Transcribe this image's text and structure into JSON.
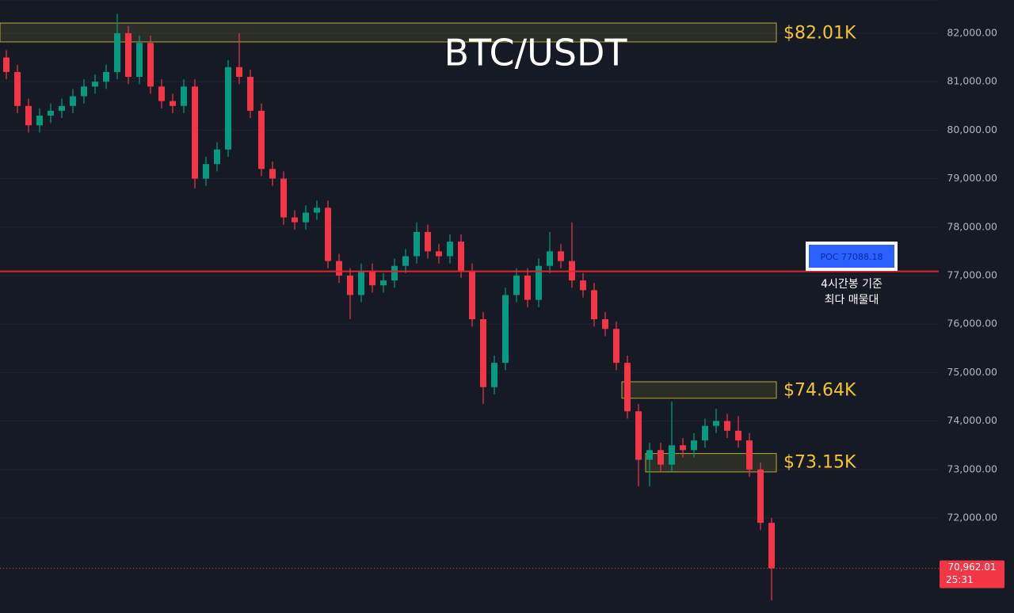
{
  "chart_data": {
    "type": "candlestick",
    "title": "BTC/USDT",
    "ylim": [
      70040,
      82685
    ],
    "yticks": [
      {
        "value": 72000,
        "label": "72,000.00"
      },
      {
        "value": 73000,
        "label": "73,000.00"
      },
      {
        "value": 74000,
        "label": "74,000.00"
      },
      {
        "value": 75000,
        "label": "75,000.00"
      },
      {
        "value": 76000,
        "label": "76,000.00"
      },
      {
        "value": 77000,
        "label": "77,000.00"
      },
      {
        "value": 78000,
        "label": "78,000.00"
      },
      {
        "value": 79000,
        "label": "79,000.00"
      },
      {
        "value": 80000,
        "label": "80,000.00"
      },
      {
        "value": 81000,
        "label": "81,000.00"
      },
      {
        "value": 82000,
        "label": "82,000.00"
      }
    ],
    "grid": true,
    "up_color": "#089981",
    "down_color": "#f23645",
    "open": [
      81500,
      81200,
      80500,
      80100,
      80300,
      80400,
      80500,
      80700,
      80900,
      81000,
      81200,
      82000,
      81100,
      81800,
      80900,
      80600,
      80500,
      80900,
      79000,
      79300,
      79600,
      81300,
      81100,
      80400,
      79200,
      79000,
      78200,
      78100,
      78300,
      78400,
      77300,
      77000,
      76600,
      77100,
      76800,
      76900,
      77200,
      77400,
      77900,
      77500,
      77400,
      77700,
      77100,
      76100,
      74700,
      75200,
      76600,
      77000,
      76500,
      77200,
      77500,
      77300,
      76900,
      76700,
      76100,
      75900,
      75200,
      74200,
      73200,
      73400,
      73100,
      73500,
      73400,
      73600,
      73900,
      74000,
      73800,
      73600,
      73000,
      71900
    ],
    "high": [
      81650,
      81350,
      80650,
      80450,
      80550,
      80650,
      80850,
      81050,
      81150,
      81350,
      82400,
      82150,
      81950,
      81950,
      81050,
      80750,
      81050,
      81050,
      79450,
      79750,
      81450,
      82000,
      81250,
      80550,
      79350,
      79150,
      78350,
      78450,
      78550,
      78550,
      77450,
      77150,
      77250,
      77250,
      77050,
      77350,
      77550,
      78100,
      78050,
      77650,
      77850,
      77850,
      77250,
      76250,
      75350,
      76750,
      77150,
      77150,
      77350,
      77900,
      77650,
      78100,
      77050,
      76850,
      76250,
      76050,
      75350,
      74350,
      73550,
      73550,
      74400,
      73650,
      73750,
      74050,
      74250,
      74150,
      74100,
      73750,
      73150,
      72000
    ],
    "low": [
      81050,
      80350,
      79950,
      79950,
      80150,
      80250,
      80350,
      80550,
      80750,
      80850,
      81050,
      80950,
      80950,
      80750,
      80450,
      80350,
      80350,
      78800,
      78850,
      79150,
      79450,
      80950,
      80250,
      79050,
      78850,
      78050,
      77950,
      77950,
      78150,
      77150,
      76850,
      76100,
      76450,
      76650,
      76650,
      76750,
      77050,
      77250,
      77350,
      77250,
      77250,
      76950,
      75950,
      74350,
      74550,
      75050,
      76450,
      76350,
      76350,
      77050,
      77150,
      76750,
      76550,
      75950,
      75750,
      75050,
      74050,
      72650,
      72650,
      72950,
      72950,
      73250,
      73250,
      73450,
      73750,
      73650,
      73450,
      72850,
      71750,
      70300
    ],
    "close": [
      81200,
      80500,
      80100,
      80300,
      80400,
      80500,
      80700,
      80900,
      81000,
      81200,
      82000,
      81100,
      81800,
      80900,
      80600,
      80500,
      80900,
      79000,
      79300,
      79600,
      81300,
      81100,
      80400,
      79200,
      79000,
      78200,
      78100,
      78300,
      78400,
      77300,
      77000,
      76600,
      77100,
      76800,
      76900,
      77200,
      77400,
      77900,
      77500,
      77400,
      77700,
      77100,
      76100,
      74700,
      75200,
      76600,
      77000,
      76500,
      77200,
      77500,
      77300,
      76900,
      76700,
      76100,
      75900,
      75200,
      74200,
      73200,
      73400,
      73100,
      73500,
      73400,
      73600,
      73900,
      74000,
      73800,
      73600,
      73000,
      71900,
      70962
    ],
    "levels": [
      {
        "value": 82010,
        "label": "$82.01K",
        "range": [
          81820,
          82210
        ]
      },
      {
        "value": 74640,
        "label": "$74.64K",
        "range": [
          74470,
          74810
        ]
      },
      {
        "value": 73150,
        "label": "$73.15K",
        "range": [
          72950,
          73330
        ]
      }
    ],
    "poc": {
      "value": 77088.18,
      "label": "POC  77088.18",
      "note": [
        "4시간봉 기준",
        "최다 매물대"
      ]
    },
    "last_price": {
      "value": 70962.01,
      "label": "70,962.01",
      "countdown": "25:31"
    }
  }
}
